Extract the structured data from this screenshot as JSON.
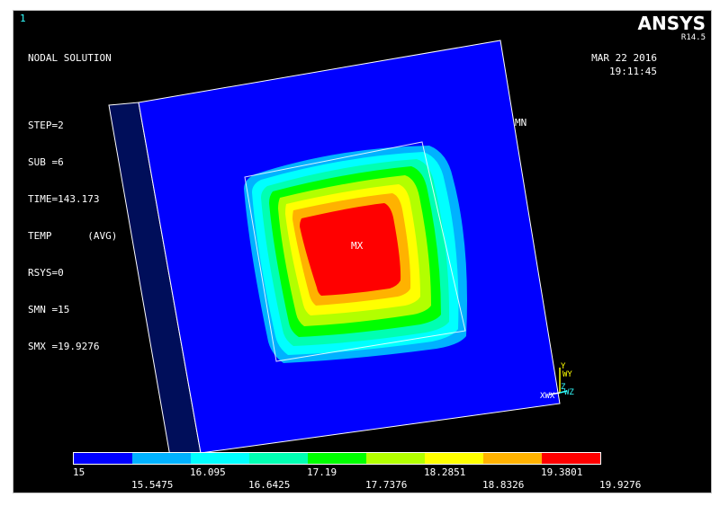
{
  "window_number": "1",
  "brand": "ANSYS",
  "release": "R14.5",
  "result_info": {
    "line1": "NODAL SOLUTION",
    "step": "STEP=2",
    "sub": "SUB =6",
    "time": "TIME=143.173",
    "temp": "TEMP      (AVG)",
    "rsys": "RSYS=0",
    "smn": "SMN =15",
    "smx": "SMX =19.9276"
  },
  "datetime": {
    "date": "MAR 22 2016",
    "time": "19:11:45"
  },
  "markers": {
    "mn": "MN",
    "mx": "MX"
  },
  "triad": {
    "y": "Y",
    "wy": "WY",
    "xwx": "XWX",
    "z": "Z",
    "wz": "WZ"
  },
  "colors": {
    "background": "#000000",
    "band_1": "#0000ff",
    "band_2": "#00b2ff",
    "band_3": "#00ffff",
    "band_4": "#00ffb2",
    "band_5": "#00ff00",
    "band_6": "#b2ff00",
    "band_7": "#ffff00",
    "band_8": "#ffb200",
    "band_9": "#ff0000",
    "shadow_side": "#000e5a"
  },
  "legend": {
    "values_top": [
      "15",
      "16.095",
      "17.19",
      "18.2851",
      "19.3801"
    ],
    "values_bottom": [
      "15.5475",
      "16.6425",
      "17.7376",
      "18.8326",
      "19.9276"
    ]
  }
}
